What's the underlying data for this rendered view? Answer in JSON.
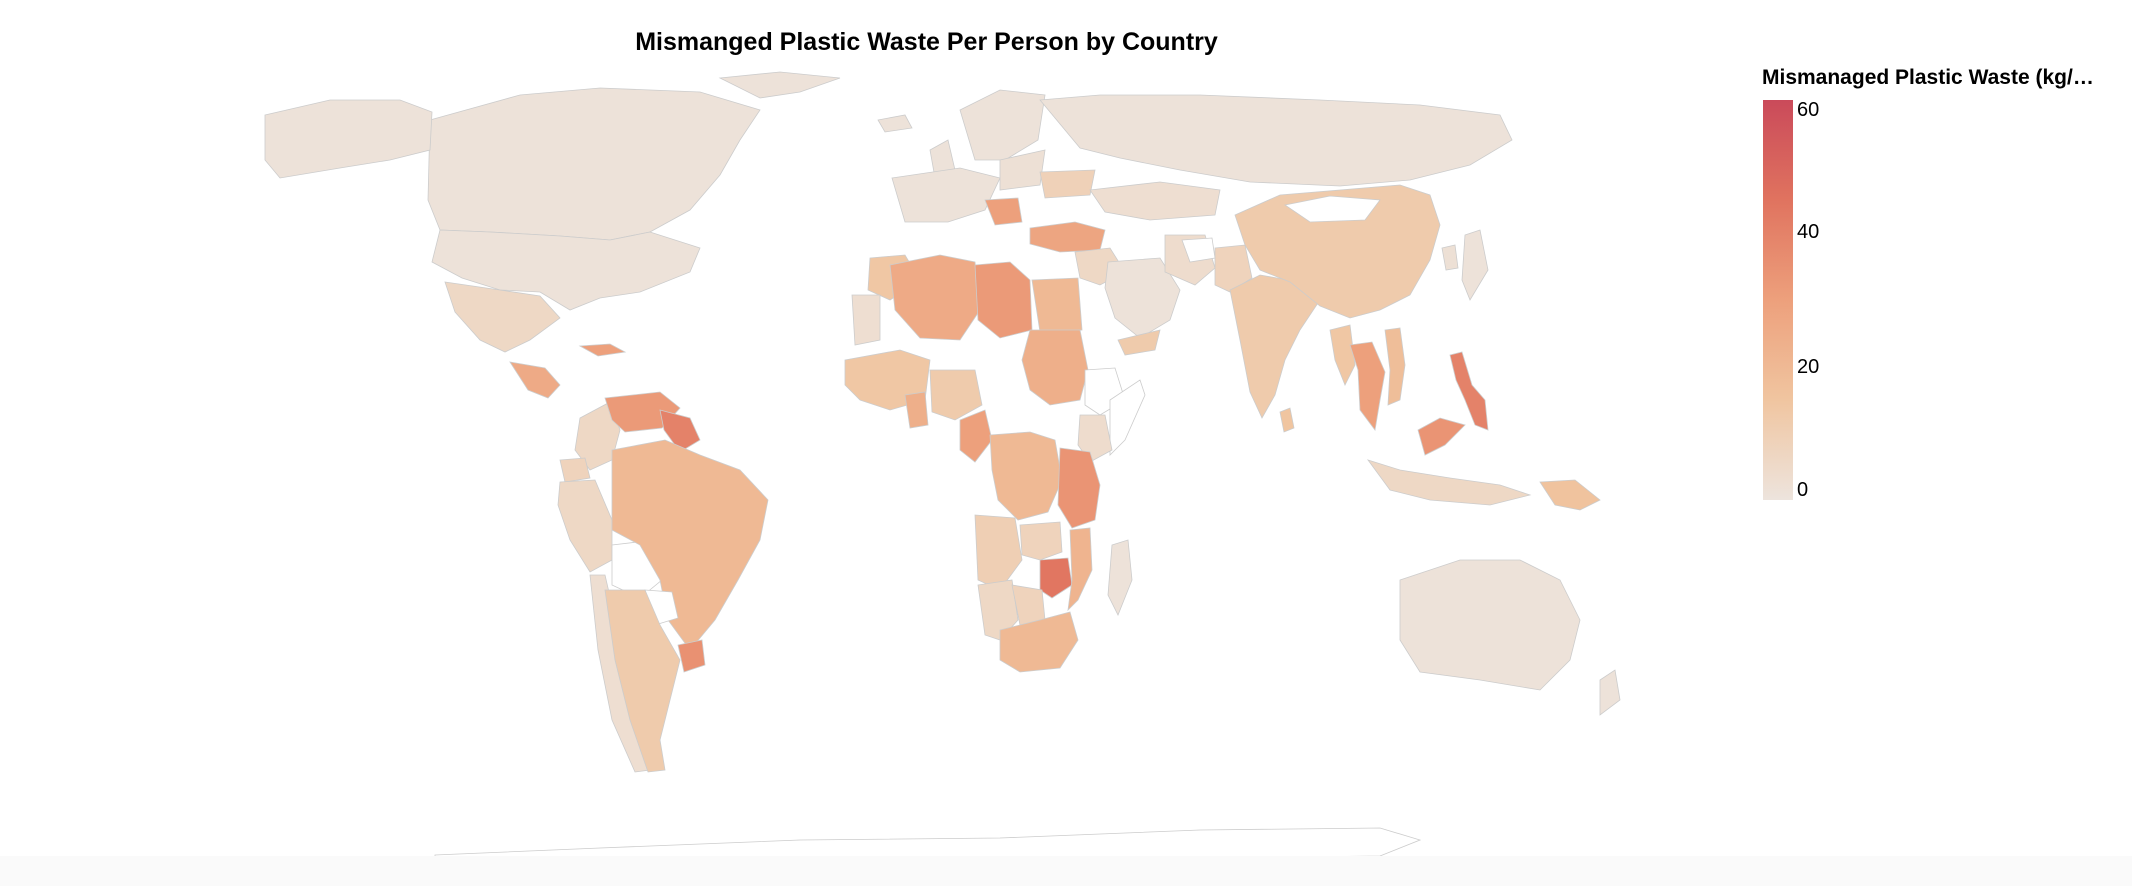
{
  "title": "Mismanged Plastic Waste Per Person by Country",
  "legend": {
    "title": "Mismanaged Plastic Waste (kg/…",
    "ticks": [
      "60",
      "40",
      "20",
      "0"
    ],
    "domain": [
      0,
      60
    ],
    "colors": [
      "#ede4dd",
      "#f0c5a0",
      "#eda07c",
      "#e0735f",
      "#ca4a5a"
    ]
  },
  "map": {
    "projection": "world choropleth",
    "no_data_color": "#ffffff",
    "border_color": "#cccccc"
  },
  "chart_data": {
    "type": "heatmap",
    "title": "Mismanged Plastic Waste Per Person by Country",
    "color_scale": "sequential",
    "domain": [
      0,
      60
    ],
    "legend_title": "Mismanaged Plastic Waste (kg/…",
    "legend_position": "right",
    "regions": [
      {
        "name": "Canada",
        "value": 1
      },
      {
        "name": "United States",
        "value": 1
      },
      {
        "name": "Alaska",
        "value": 1
      },
      {
        "name": "Greenland",
        "value": 1
      },
      {
        "name": "Mexico",
        "value": 6
      },
      {
        "name": "Central America",
        "value": 26
      },
      {
        "name": "Cuba",
        "value": 30
      },
      {
        "name": "Colombia",
        "value": 6
      },
      {
        "name": "Venezuela",
        "value": 32
      },
      {
        "name": "Guyana",
        "value": 40
      },
      {
        "name": "Ecuador",
        "value": 8
      },
      {
        "name": "Peru",
        "value": 6
      },
      {
        "name": "Bolivia",
        "value": 0
      },
      {
        "name": "Brazil",
        "value": 20
      },
      {
        "name": "Chile",
        "value": 3
      },
      {
        "name": "Paraguay",
        "value": 0
      },
      {
        "name": "Uruguay",
        "value": 35
      },
      {
        "name": "Argentina",
        "value": 12
      },
      {
        "name": "Iceland",
        "value": 1
      },
      {
        "name": "Scandinavia",
        "value": 1
      },
      {
        "name": "United Kingdom",
        "value": 1
      },
      {
        "name": "Western Europe",
        "value": 1
      },
      {
        "name": "Eastern Europe",
        "value": 2
      },
      {
        "name": "Ukraine",
        "value": 9
      },
      {
        "name": "Balkans",
        "value": 30
      },
      {
        "name": "Turkey",
        "value": 28
      },
      {
        "name": "Russia",
        "value": 1
      },
      {
        "name": "Kazakhstan",
        "value": 3
      },
      {
        "name": "Middle East",
        "value": 6
      },
      {
        "name": "Saudi Arabia",
        "value": 1
      },
      {
        "name": "Yemen",
        "value": 12
      },
      {
        "name": "Iran",
        "value": 4
      },
      {
        "name": "Afghanistan",
        "value": 0
      },
      {
        "name": "Pakistan",
        "value": 8
      },
      {
        "name": "India",
        "value": 12
      },
      {
        "name": "Sri Lanka",
        "value": 15
      },
      {
        "name": "China",
        "value": 12
      },
      {
        "name": "Mongolia",
        "value": 0
      },
      {
        "name": "Japan",
        "value": 1
      },
      {
        "name": "Korea",
        "value": 2
      },
      {
        "name": "Myanmar",
        "value": 14
      },
      {
        "name": "Thailand",
        "value": 30
      },
      {
        "name": "Vietnam",
        "value": 18
      },
      {
        "name": "Malaysia",
        "value": 34
      },
      {
        "name": "Indonesia",
        "value": 6
      },
      {
        "name": "Philippines",
        "value": 40
      },
      {
        "name": "Papua New Guinea",
        "value": 16
      },
      {
        "name": "Australia",
        "value": 1
      },
      {
        "name": "New Zealand",
        "value": 1
      },
      {
        "name": "Morocco",
        "value": 14
      },
      {
        "name": "Algeria",
        "value": 26
      },
      {
        "name": "Libya",
        "value": 32
      },
      {
        "name": "Egypt",
        "value": 20
      },
      {
        "name": "Western Sahara",
        "value": 3
      },
      {
        "name": "West Africa",
        "value": 14
      },
      {
        "name": "Ghana",
        "value": 24
      },
      {
        "name": "Nigeria",
        "value": 12
      },
      {
        "name": "Cameroon",
        "value": 30
      },
      {
        "name": "Sudan",
        "value": 24
      },
      {
        "name": "Ethiopia",
        "value": 0
      },
      {
        "name": "Somalia",
        "value": 0
      },
      {
        "name": "Kenya",
        "value": 4
      },
      {
        "name": "Congo",
        "value": 20
      },
      {
        "name": "Tanzania",
        "value": 34
      },
      {
        "name": "Angola",
        "value": 10
      },
      {
        "name": "Zambia",
        "value": 8
      },
      {
        "name": "Zimbabwe",
        "value": 44
      },
      {
        "name": "Mozambique",
        "value": 22
      },
      {
        "name": "Namibia",
        "value": 6
      },
      {
        "name": "Botswana",
        "value": 8
      },
      {
        "name": "South Africa",
        "value": 20
      },
      {
        "name": "Madagascar",
        "value": 1
      },
      {
        "name": "Antarctica",
        "value": 0
      }
    ]
  }
}
